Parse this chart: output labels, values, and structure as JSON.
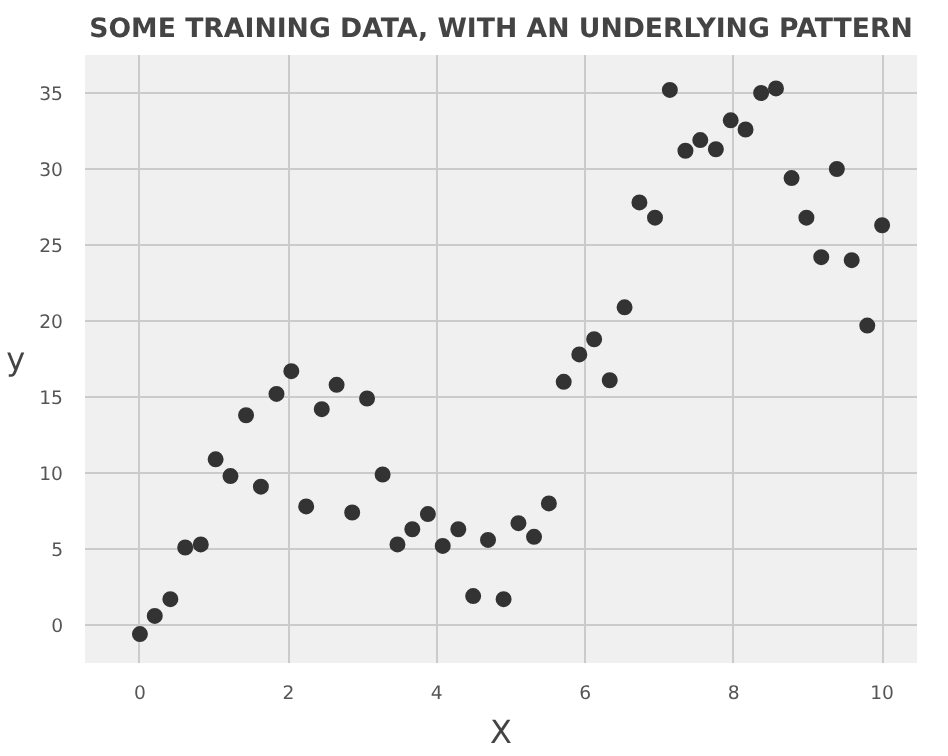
{
  "chart_data": {
    "type": "scatter",
    "title": "SOME TRAINING DATA, WITH AN UNDERLYING PATTERN",
    "xlabel": "X",
    "ylabel": "y",
    "x": [
      0,
      0.2,
      0.41,
      0.61,
      0.82,
      1.02,
      1.22,
      1.43,
      1.63,
      1.84,
      2.04,
      2.24,
      2.45,
      2.65,
      2.86,
      3.06,
      3.27,
      3.47,
      3.67,
      3.88,
      4.08,
      4.29,
      4.49,
      4.69,
      4.9,
      5.1,
      5.31,
      5.51,
      5.71,
      5.92,
      6.12,
      6.33,
      6.53,
      6.73,
      6.94,
      7.14,
      7.35,
      7.55,
      7.76,
      7.96,
      8.16,
      8.37,
      8.57,
      8.78,
      8.98,
      9.18,
      9.39,
      9.59,
      9.8,
      10
    ],
    "series": [
      {
        "color": "#333333",
        "values": [
          -0.6,
          0.6,
          1.7,
          5.1,
          5.3,
          10.9,
          9.8,
          13.8,
          9.1,
          15.2,
          16.7,
          7.8,
          14.2,
          15.8,
          7.4,
          14.9,
          9.9,
          5.3,
          6.3,
          7.3,
          5.2,
          6.3,
          1.9,
          5.6,
          1.7,
          6.7,
          5.8,
          8.0,
          16.0,
          17.8,
          18.8,
          16.1,
          20.9,
          27.8,
          26.8,
          35.2,
          31.2,
          31.9,
          31.3,
          33.2,
          32.6,
          35.0,
          35.3,
          29.4,
          26.8,
          24.2,
          30.0,
          24.0,
          19.7,
          26.3
        ]
      }
    ],
    "xlim": [
      -0.74,
      10.47
    ],
    "ylim": [
      -2.5,
      37.5
    ],
    "xticks": [
      0,
      2,
      4,
      6,
      8,
      10
    ],
    "yticks": [
      0,
      5,
      10,
      15,
      20,
      25,
      30,
      35
    ],
    "grid": true,
    "marker": "circle"
  }
}
